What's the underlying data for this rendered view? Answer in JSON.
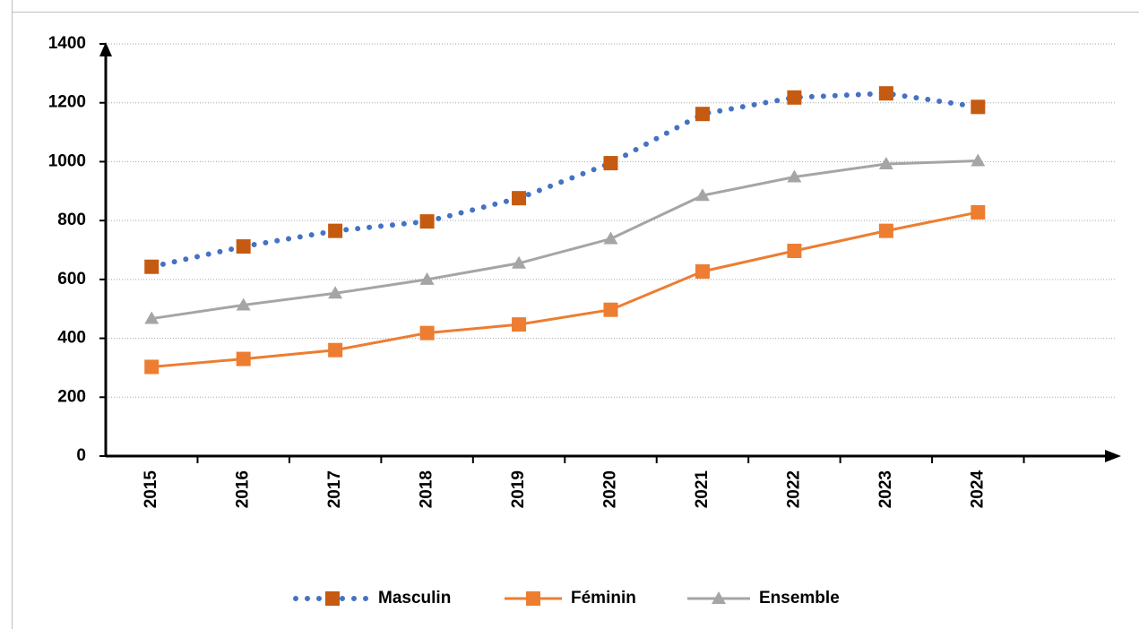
{
  "chart_data": {
    "type": "line",
    "categories": [
      "2015",
      "2016",
      "2017",
      "2018",
      "2019",
      "2020",
      "2021",
      "2022",
      "2023",
      "2024"
    ],
    "series": [
      {
        "name": "Masculin",
        "color": "#4472c4",
        "marker_color": "#c55a11",
        "line_style": "dotted",
        "marker": "square",
        "values": [
          643,
          712,
          765,
          797,
          876,
          995,
          1162,
          1218,
          1232,
          1186
        ]
      },
      {
        "name": "Féminin",
        "color": "#ed7d31",
        "marker_color": "#ed7d31",
        "line_style": "solid",
        "marker": "square",
        "values": [
          303,
          330,
          360,
          418,
          447,
          497,
          627,
          697,
          765,
          828
        ]
      },
      {
        "name": "Ensemble",
        "color": "#a5a5a5",
        "marker_color": "#a5a5a5",
        "line_style": "solid",
        "marker": "triangle",
        "values": [
          467,
          513,
          553,
          600,
          655,
          738,
          885,
          948,
          992,
          1003
        ]
      }
    ],
    "ylim": [
      0,
      1400
    ],
    "yticks": [
      0,
      200,
      400,
      600,
      800,
      1000,
      1200,
      1400
    ],
    "grid": true,
    "legend": "bottom"
  }
}
